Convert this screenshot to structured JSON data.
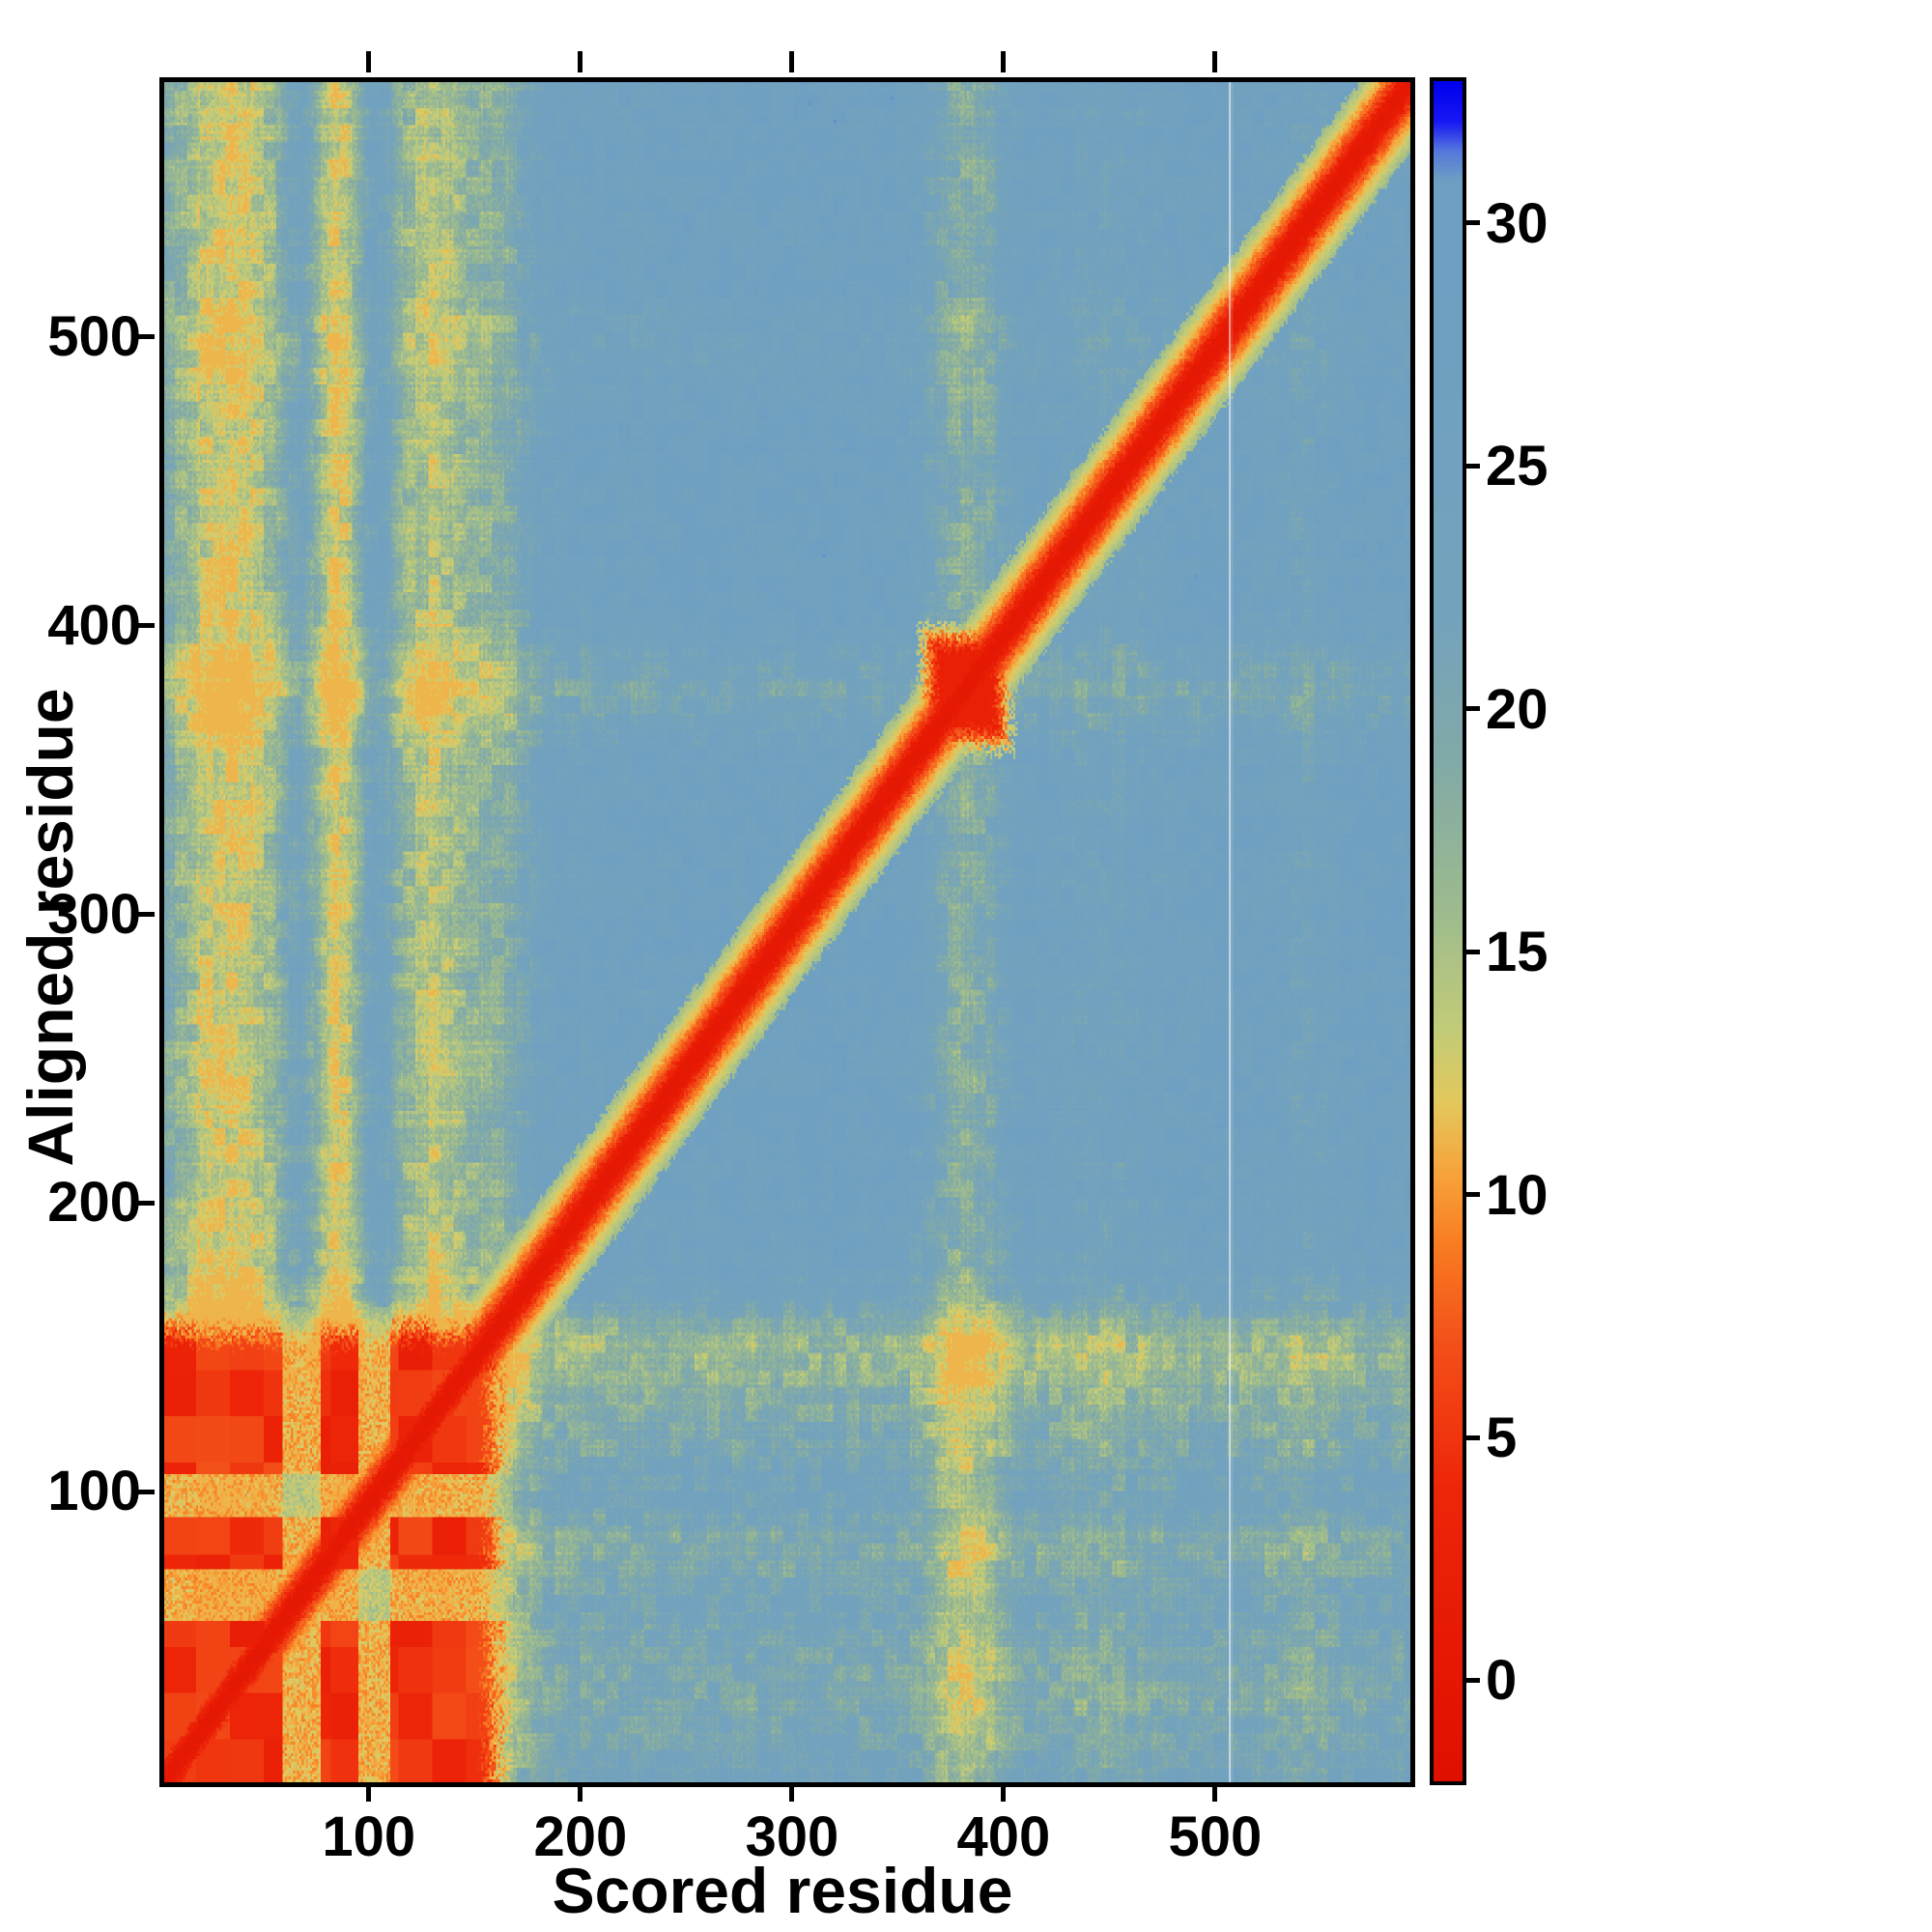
{
  "chart_data": {
    "type": "heatmap",
    "title": "",
    "xlabel": "Scored residue",
    "ylabel": "Aligned residue",
    "x_range": [
      1,
      590
    ],
    "y_range": [
      1,
      590
    ],
    "x_ticks": [
      100,
      200,
      300,
      400,
      500
    ],
    "y_ticks": [
      100,
      200,
      300,
      400,
      500
    ],
    "grid": false,
    "legend": "colorbar-right",
    "colorbar": {
      "range": [
        -2,
        33
      ],
      "ticks": [
        0,
        5,
        10,
        15,
        20,
        25,
        30
      ],
      "stops": [
        {
          "v": -2.0,
          "c": "#e01000"
        },
        {
          "v": 4.0,
          "c": "#ee2609"
        },
        {
          "v": 7.0,
          "c": "#f4511a"
        },
        {
          "v": 9.0,
          "c": "#f97c22"
        },
        {
          "v": 10.5,
          "c": "#f7a43c"
        },
        {
          "v": 12.0,
          "c": "#e3c95e"
        },
        {
          "v": 13.5,
          "c": "#c2cc79"
        },
        {
          "v": 16.0,
          "c": "#9dbb8f"
        },
        {
          "v": 19.0,
          "c": "#82aaa8"
        },
        {
          "v": 22.0,
          "c": "#74a3bd"
        },
        {
          "v": 31.0,
          "c": "#6d9fc4"
        },
        {
          "v": 31.6,
          "c": "#5577dd"
        },
        {
          "v": 32.2,
          "c": "#1818f5"
        },
        {
          "v": 33.0,
          "c": "#0000ee"
        }
      ]
    },
    "field": {
      "seed": 7,
      "background": 26.5,
      "background_clamp": [
        11.2,
        31.3
      ],
      "noise_coarse": 2.2,
      "noise_fine": 1.6,
      "streak_noise": 1.6,
      "diagonal_profile": [
        [
          0,
          0.2
        ],
        [
          4,
          0.8
        ],
        [
          8,
          5.5
        ],
        [
          14,
          10.5
        ],
        [
          24,
          16
        ]
      ],
      "diagonal_jitter": 3,
      "green_bands_x": [
        {
          "center": 30,
          "width": 22,
          "strength": 11
        },
        {
          "center": 75,
          "width": 75,
          "strength": 3.5
        },
        {
          "center": 82,
          "width": 9,
          "strength": 10
        },
        {
          "center": 128,
          "width": 16,
          "strength": 9
        },
        {
          "center": 160,
          "width": 10,
          "strength": 5
        },
        {
          "center": 380,
          "width": 13,
          "strength": 8
        },
        {
          "center": 445,
          "width": 18,
          "strength": 2.5
        },
        {
          "center": 540,
          "width": 12,
          "strength": 2.5
        }
      ],
      "green_bands_y": [
        {
          "center": 30,
          "width": 22,
          "strength": 4
        },
        {
          "center": 75,
          "width": 70,
          "strength": 2.5
        },
        {
          "center": 82,
          "width": 9,
          "strength": 4
        },
        {
          "center": 128,
          "width": 14,
          "strength": 4.5
        },
        {
          "center": 152,
          "width": 11,
          "strength": 7
        },
        {
          "center": 380,
          "width": 12,
          "strength": 4.5
        },
        {
          "center": 500,
          "width": 10,
          "strength": 2
        }
      ],
      "blue_bands_x": [
        {
          "center": 66,
          "width": 7,
          "strength": 4
        },
        {
          "center": 101,
          "width": 6,
          "strength": 4
        }
      ],
      "domain_block": {
        "extent": 152,
        "core_value": 4.5,
        "checker": 2.5,
        "gaps_x": [
          [
            57,
            74
          ],
          [
            93,
            107
          ]
        ],
        "gaps_y": [
          [
            57,
            74
          ],
          [
            93,
            107
          ]
        ],
        "gap_value": 11,
        "fringe_width": 14,
        "fringe_value": 17
      },
      "blob": {
        "x": 380,
        "y": 380,
        "radius": 13,
        "value": 2.5,
        "fringe_radius": 22,
        "fringe_value": 15
      },
      "white_line_x": 505
    }
  }
}
